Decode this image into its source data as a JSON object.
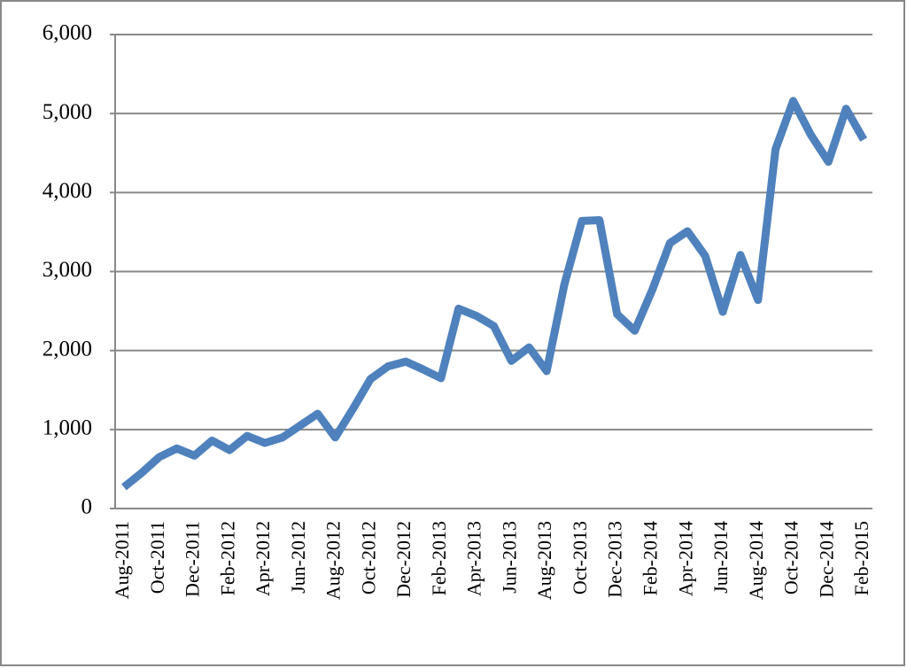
{
  "chart_data": {
    "type": "line",
    "categories": [
      "Aug-2011",
      null,
      "Oct-2011",
      null,
      "Dec-2011",
      null,
      "Feb-2012",
      null,
      "Apr-2012",
      null,
      "Jun-2012",
      null,
      "Aug-2012",
      null,
      "Oct-2012",
      null,
      "Dec-2012",
      null,
      "Feb-2013",
      null,
      "Apr-2013",
      null,
      "Jun-2013",
      null,
      "Aug-2013",
      null,
      "Oct-2013",
      null,
      "Dec-2013",
      null,
      "Feb-2014",
      null,
      "Apr-2014",
      null,
      "Jun-2014",
      null,
      "Aug-2014",
      null,
      "Oct-2014",
      null,
      "Dec-2014",
      null,
      "Feb-2015"
    ],
    "series": [
      {
        "color": "#4f81bd",
        "values": [
          270,
          450,
          650,
          760,
          670,
          860,
          740,
          920,
          830,
          900,
          1050,
          1200,
          900,
          1260,
          1640,
          1800,
          1860,
          1760,
          1650,
          2530,
          2440,
          2310,
          1870,
          2040,
          1740,
          2830,
          3640,
          3650,
          2460,
          2250,
          2770,
          3360,
          3510,
          3200,
          2490,
          3210,
          2640,
          4550,
          5160,
          4730,
          4390,
          5060,
          4670
        ]
      }
    ],
    "ylim": [
      0,
      6000
    ],
    "yticks": [
      0,
      {
        "value": 1000,
        "label": "1,000"
      },
      {
        "value": 2000,
        "label": "2,000"
      },
      {
        "value": 3000,
        "label": "3,000"
      },
      {
        "value": 4000,
        "label": "4,000"
      },
      {
        "value": 5000,
        "label": "5,000"
      },
      {
        "value": 6000,
        "label": "6,000"
      }
    ],
    "grid": true
  }
}
